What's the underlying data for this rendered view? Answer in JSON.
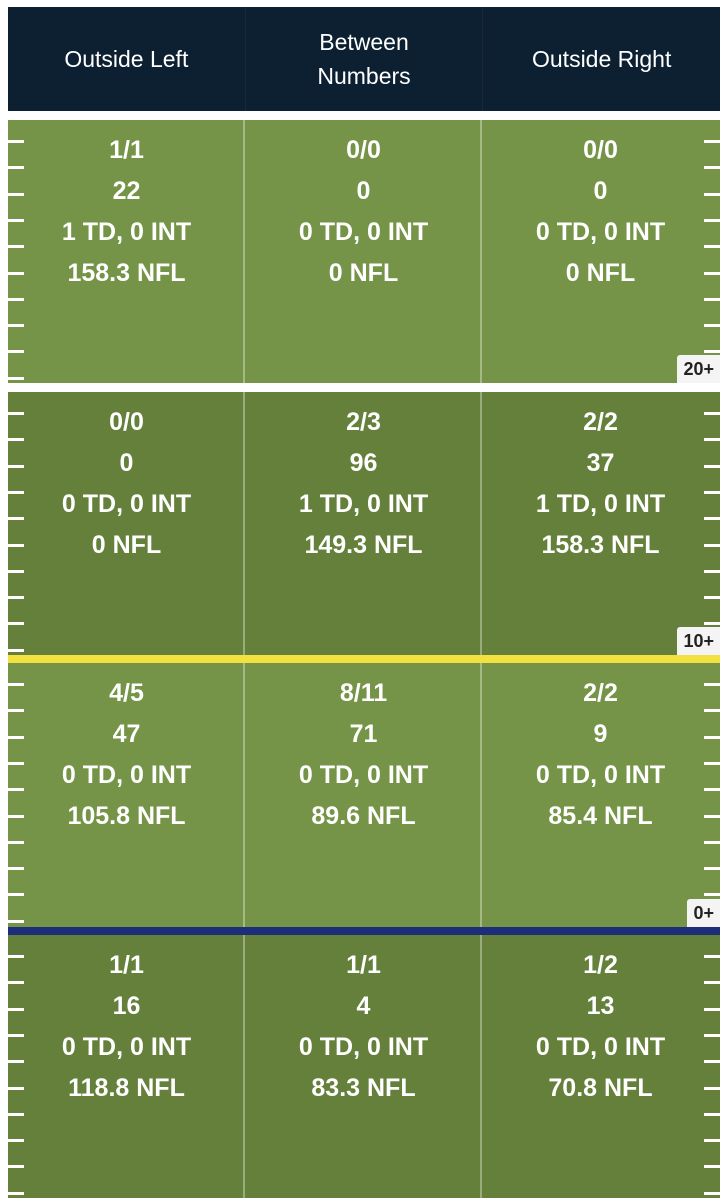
{
  "header": {
    "columns": [
      "Outside Left",
      "Between Numbers",
      "Outside Right"
    ]
  },
  "zones": [
    {
      "label": "20+",
      "cells": [
        {
          "comp": "1/1",
          "yards": "22",
          "tds": "1 TD, 0 INT",
          "rating": "158.3 NFL"
        },
        {
          "comp": "0/0",
          "yards": "0",
          "tds": "0 TD, 0 INT",
          "rating": "0 NFL"
        },
        {
          "comp": "0/0",
          "yards": "0",
          "tds": "0 TD, 0 INT",
          "rating": "0 NFL"
        }
      ]
    },
    {
      "label": "10+",
      "cells": [
        {
          "comp": "0/0",
          "yards": "0",
          "tds": "0 TD, 0 INT",
          "rating": "0 NFL"
        },
        {
          "comp": "2/3",
          "yards": "96",
          "tds": "1 TD, 0 INT",
          "rating": "149.3 NFL"
        },
        {
          "comp": "2/2",
          "yards": "37",
          "tds": "1 TD, 0 INT",
          "rating": "158.3 NFL"
        }
      ]
    },
    {
      "label": "0+",
      "cells": [
        {
          "comp": "4/5",
          "yards": "47",
          "tds": "0 TD, 0 INT",
          "rating": "105.8 NFL"
        },
        {
          "comp": "8/11",
          "yards": "71",
          "tds": "0 TD, 0 INT",
          "rating": "89.6 NFL"
        },
        {
          "comp": "2/2",
          "yards": "9",
          "tds": "0 TD, 0 INT",
          "rating": "85.4 NFL"
        }
      ]
    },
    {
      "label": "",
      "cells": [
        {
          "comp": "1/1",
          "yards": "16",
          "tds": "0 TD, 0 INT",
          "rating": "118.8 NFL"
        },
        {
          "comp": "1/1",
          "yards": "4",
          "tds": "0 TD, 0 INT",
          "rating": "83.3 NFL"
        },
        {
          "comp": "1/2",
          "yards": "13",
          "tds": "0 TD, 0 INT",
          "rating": "70.8 NFL"
        }
      ]
    }
  ],
  "colors": {
    "header_bg": "#0c2031",
    "field_light": "#759447",
    "field_dark": "#65803b",
    "line_of_scrimmage": "#1c2d7a",
    "first_down_line": "#f3e140"
  }
}
